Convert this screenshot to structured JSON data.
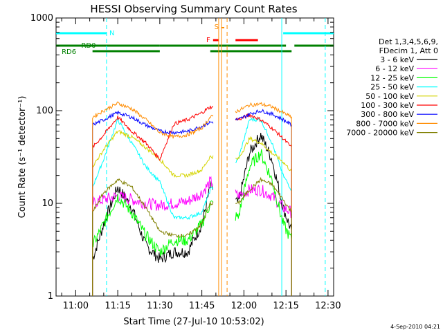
{
  "chart_data": {
    "type": "line",
    "title": "HESSI Observing Summary Count Rates",
    "xlabel": "Start Time (27-Jul-10 10:53:02)",
    "ylabel": "Count Rate (s⁻¹ detector⁻¹)",
    "yscale": "log",
    "ylim": [
      1,
      1000
    ],
    "xlim": [
      "10:53",
      "12:32"
    ],
    "x_ticks": [
      "11:00",
      "11:15",
      "11:30",
      "11:45",
      "12:00",
      "12:15",
      "12:30"
    ],
    "y_ticks": [
      "1",
      "10",
      "100",
      "1000"
    ],
    "footer_date": "4-Sep-2010 04:21",
    "legend_header": [
      "Det 1,3,4,5,6,9,",
      "FDecim 1, Att 0"
    ],
    "legend_position": "right",
    "series": [
      {
        "name": "3 - 6 keV",
        "color": "#000000",
        "x": [
          "11:06",
          "11:10",
          "11:15",
          "11:20",
          "11:25",
          "11:30",
          "11:35",
          "11:40",
          "11:45",
          "11:48",
          "11:58",
          "12:02",
          "12:06",
          "12:10",
          "12:14",
          "12:17"
        ],
        "values": [
          2.5,
          6,
          15,
          9,
          3.5,
          2.5,
          3,
          3,
          6,
          15,
          10,
          35,
          55,
          30,
          9,
          5
        ]
      },
      {
        "name": "6 - 12 keV",
        "color": "#ff00ff",
        "x": [
          "11:06",
          "11:10",
          "11:15",
          "11:20",
          "11:25",
          "11:30",
          "11:35",
          "11:40",
          "11:45",
          "11:48",
          "11:58",
          "12:02",
          "12:06",
          "12:10",
          "12:14",
          "12:17"
        ],
        "values": [
          10,
          11,
          12,
          11,
          10,
          9.5,
          10,
          10.5,
          13,
          17,
          12,
          14,
          14,
          12,
          9,
          8
        ]
      },
      {
        "name": "12 - 25 keV",
        "color": "#00ff00",
        "x": [
          "11:06",
          "11:10",
          "11:15",
          "11:20",
          "11:25",
          "11:30",
          "11:35",
          "11:40",
          "11:45",
          "11:48",
          "11:58",
          "12:02",
          "12:06",
          "12:10",
          "12:14",
          "12:17"
        ],
        "values": [
          3.5,
          6,
          12,
          8,
          4.5,
          3,
          4,
          4,
          6,
          10,
          7,
          25,
          35,
          18,
          6,
          4
        ]
      },
      {
        "name": "25 - 50 keV",
        "color": "#00ffff",
        "x": [
          "11:06",
          "11:10",
          "11:15",
          "11:20",
          "11:25",
          "11:30",
          "11:35",
          "11:40",
          "11:45",
          "11:48",
          "11:58",
          "12:02",
          "12:06",
          "12:10",
          "12:14",
          "12:17"
        ],
        "values": [
          15,
          30,
          80,
          45,
          25,
          17,
          7,
          7,
          8,
          14,
          30,
          80,
          80,
          45,
          20,
          14
        ]
      },
      {
        "name": "50 - 100 keV",
        "color": "#d4d400",
        "x": [
          "11:06",
          "11:10",
          "11:15",
          "11:20",
          "11:25",
          "11:30",
          "11:35",
          "11:40",
          "11:45",
          "11:48",
          "11:58",
          "12:02",
          "12:06",
          "12:10",
          "12:14",
          "12:17"
        ],
        "values": [
          25,
          38,
          60,
          52,
          40,
          30,
          20,
          20,
          23,
          32,
          30,
          50,
          45,
          35,
          28,
          22
        ]
      },
      {
        "name": "100 - 300 keV",
        "color": "#ff0000",
        "x": [
          "11:06",
          "11:10",
          "11:15",
          "11:20",
          "11:25",
          "11:30",
          "11:35",
          "11:40",
          "11:45",
          "11:48",
          "11:58",
          "12:02",
          "12:06",
          "12:10",
          "12:14",
          "12:17"
        ],
        "values": [
          40,
          55,
          85,
          60,
          45,
          30,
          72,
          80,
          95,
          110,
          80,
          90,
          80,
          65,
          50,
          40
        ]
      },
      {
        "name": "300 - 800 keV",
        "color": "#0000ff",
        "x": [
          "11:06",
          "11:10",
          "11:15",
          "11:20",
          "11:25",
          "11:30",
          "11:35",
          "11:40",
          "11:45",
          "11:48",
          "11:58",
          "12:02",
          "12:06",
          "12:10",
          "12:14",
          "12:17"
        ],
        "values": [
          70,
          80,
          95,
          85,
          70,
          60,
          58,
          60,
          68,
          75,
          80,
          92,
          100,
          92,
          80,
          70
        ]
      },
      {
        "name": "800 - 7000 keV",
        "color": "#ff8c00",
        "x": [
          "11:06",
          "11:10",
          "11:15",
          "11:20",
          "11:25",
          "11:30",
          "11:35",
          "11:40",
          "11:45",
          "11:48",
          "11:58",
          "12:02",
          "12:06",
          "12:10",
          "12:14",
          "12:17"
        ],
        "values": [
          85,
          100,
          120,
          105,
          80,
          58,
          52,
          55,
          65,
          85,
          100,
          115,
          118,
          110,
          95,
          85
        ]
      },
      {
        "name": "7000 - 20000 keV",
        "color": "#808000",
        "x": [
          "11:06",
          "11:10",
          "11:15",
          "11:20",
          "11:25",
          "11:30",
          "11:35",
          "11:40",
          "11:45",
          "11:48",
          "11:58",
          "12:02",
          "12:06",
          "12:10",
          "12:14",
          "12:17"
        ],
        "values": [
          8,
          13,
          18,
          15,
          9,
          5,
          4.5,
          4.5,
          6,
          10,
          10,
          14,
          18,
          16,
          11,
          8
        ]
      }
    ],
    "annotations": [
      {
        "label": "N",
        "color": "#00ffff"
      },
      {
        "label": "RD0",
        "color": "#008000"
      },
      {
        "label": "RD6",
        "color": "#008000"
      },
      {
        "label": "F",
        "color": "#ff0000"
      },
      {
        "label": "S",
        "color": "#ff8c00"
      }
    ]
  }
}
